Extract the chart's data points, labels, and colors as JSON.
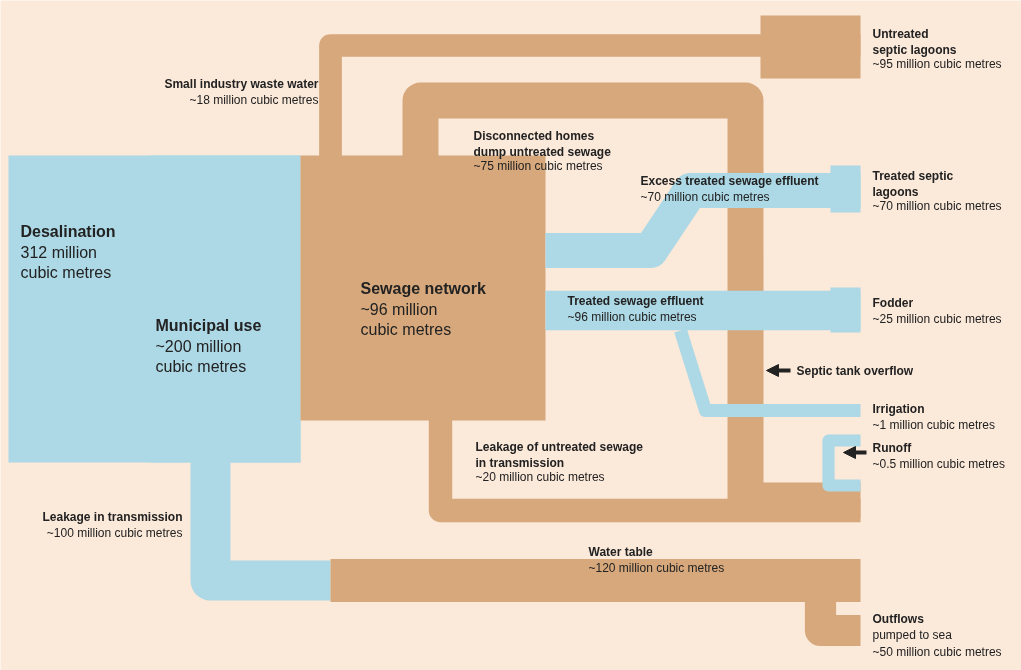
{
  "chart_data": {
    "type": "other",
    "categories": [
      "Desalination",
      "Municipal use",
      "Small industry waste water",
      "Sewage network",
      "Disconnected homes\ndump untreated sewage",
      "Untreated\nseptic lagoons",
      "Excess treated sewage effluent",
      "Treated septic\nlagoons",
      "Treated sewage effluent",
      "Fodder",
      "Irrigation",
      "Runoff",
      "Leakage of untreated sewage\nin transmission",
      "Leakage in transmission",
      "Water table",
      "Outflows"
    ],
    "values": [
      312,
      200,
      18,
      96,
      75,
      95,
      70,
      70,
      96,
      25,
      1,
      0.5,
      20,
      100,
      120,
      50
    ],
    "value_labels": [
      "312 million\ncubic metres",
      "~200 million\ncubic metres",
      "~18 million cubic metres",
      "~96 million\ncubic metres",
      "~75 million cubic metres",
      "~95 million cubic metres",
      "~70 million cubic metres",
      "~70 million cubic metres",
      "~96 million cubic metres",
      "~25 million cubic metres",
      "~1 million cubic metres",
      "~0.5 million cubic metres",
      "~20 million cubic metres",
      "~100 million cubic metres",
      "~120 million cubic metres",
      "pumped to sea\n~50 million cubic metres"
    ],
    "colors": [
      "#add8e6",
      "#add8e6",
      "#d6a87c",
      "#d6a87c",
      "#d6a87c",
      "#d6a87c",
      "#add8e6",
      "#add8e6",
      "#add8e6",
      "#add8e6",
      "#add8e6",
      "#add8e6",
      "#d6a87c",
      "#add8e6",
      "#d6a87c",
      "#d6a87c"
    ],
    "annotations": [
      "Septic tank overflow"
    ]
  }
}
